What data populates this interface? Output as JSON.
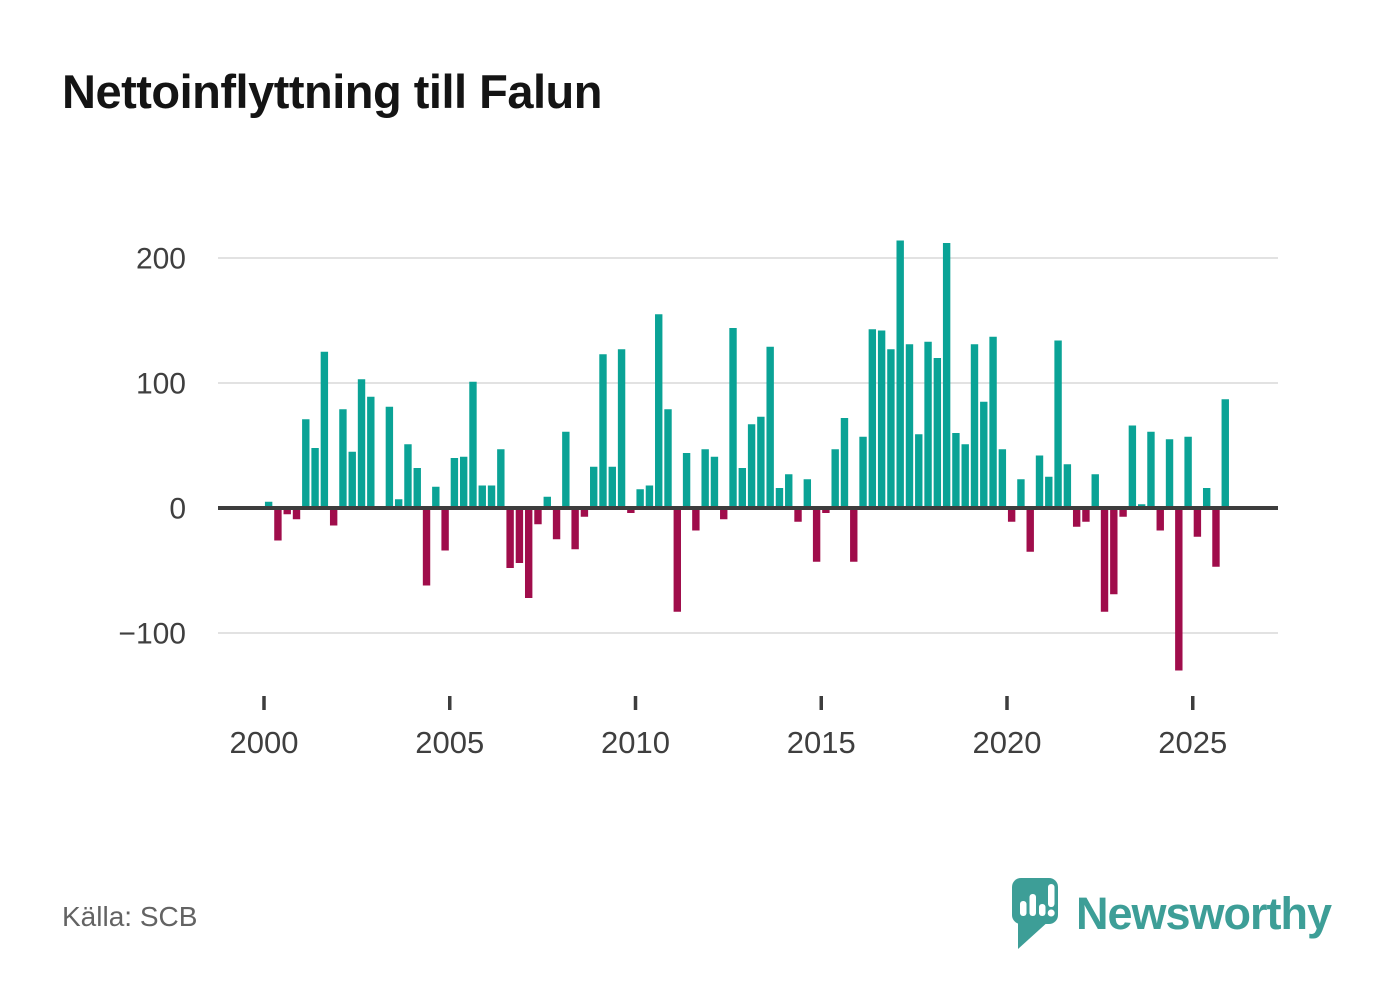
{
  "title": "Nettoinflyttning till Falun",
  "footer": {
    "source": "Källa: SCB",
    "brand": "Newsworthy",
    "brand_color": "#3d9e97"
  },
  "chart_data": {
    "type": "bar",
    "title": "Nettoinflyttning till Falun",
    "frequency": "quarterly",
    "start_period": "2000 Q1",
    "end_period": "2025 Q4",
    "values": [
      5,
      -26,
      -5,
      -9,
      71,
      48,
      125,
      -14,
      79,
      45,
      103,
      89,
      1,
      81,
      7,
      51,
      32,
      -62,
      17,
      -34,
      40,
      41,
      101,
      18,
      18,
      47,
      -48,
      -44,
      -72,
      -13,
      9,
      -25,
      61,
      -33,
      -7,
      33,
      123,
      33,
      127,
      -4,
      15,
      18,
      155,
      79,
      -83,
      44,
      -18,
      47,
      41,
      -9,
      144,
      32,
      67,
      73,
      129,
      16,
      27,
      -11,
      23,
      -43,
      -4,
      47,
      72,
      -43,
      57,
      143,
      142,
      127,
      214,
      131,
      59,
      133,
      120,
      212,
      60,
      51,
      131,
      85,
      137,
      47,
      -11,
      23,
      -35,
      42,
      25,
      134,
      35,
      -15,
      -11,
      27,
      -83,
      -69,
      -7,
      66,
      3,
      61,
      -18,
      55,
      -130,
      57,
      -23,
      16,
      -47,
      87
    ],
    "y_ticks": [
      200,
      100,
      0,
      -100
    ],
    "y_tick_labels": [
      "200",
      "100",
      "0",
      "−100"
    ],
    "x_ticks": [
      2000,
      2005,
      2010,
      2015,
      2020,
      2025
    ],
    "x_tick_labels": [
      "2000",
      "2005",
      "2010",
      "2015",
      "2020",
      "2025"
    ],
    "ylim": [
      -140,
      230
    ],
    "grid": true,
    "legend": "none",
    "positive_color": "#0aa396",
    "negative_color": "#a00d4b",
    "axis_line_color": "#3d3d3d",
    "grid_color": "#e2e2e2",
    "tick_text_color": "#3f3f3f"
  }
}
